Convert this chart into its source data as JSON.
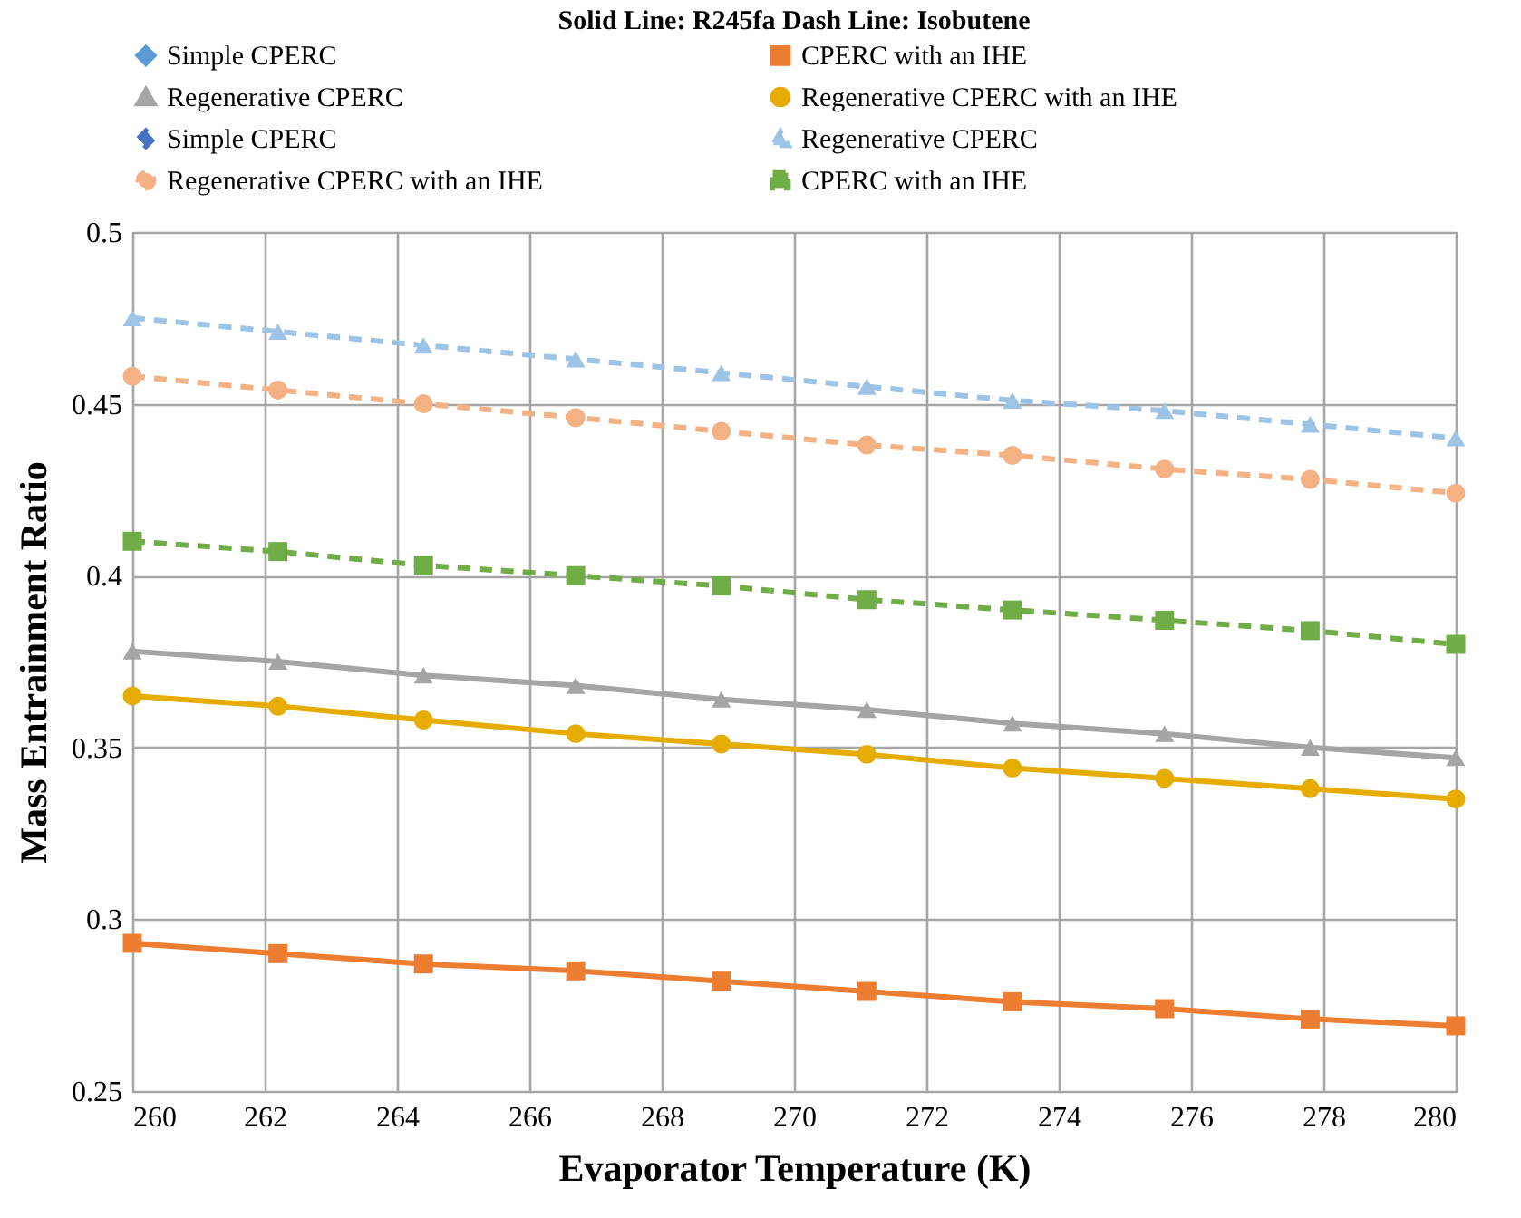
{
  "chart_data": {
    "type": "line",
    "title": "Solid Line: R245fa     Dash Line: Isobutene",
    "xlabel": "Evaporator Temperature (K)",
    "ylabel": "Mass Entrainment Ratio",
    "x": [
      260,
      262.2,
      264.4,
      266.7,
      268.9,
      271.1,
      273.3,
      275.6,
      277.8,
      280
    ],
    "xlim": [
      260,
      280
    ],
    "xticks": [
      260,
      262,
      264,
      266,
      268,
      270,
      272,
      274,
      276,
      278,
      280
    ],
    "ylim": [
      0.25,
      0.5
    ],
    "yticks": [
      0.25,
      0.3,
      0.35,
      0.4,
      0.45,
      0.5
    ],
    "grid": true,
    "legend": "top",
    "series": [
      {
        "name": "Simple CPERC",
        "color": "#5b9bd5",
        "marker": "diamond",
        "line_style": "solid",
        "values": [
          null,
          null,
          null,
          null,
          null,
          null,
          null,
          null,
          null,
          null
        ]
      },
      {
        "name": "CPERC with an IHE",
        "color": "#ed7d31",
        "marker": "square",
        "line_style": "solid",
        "values": [
          0.293,
          0.29,
          0.287,
          0.285,
          0.282,
          0.279,
          0.276,
          0.274,
          0.271,
          0.269
        ]
      },
      {
        "name": "Regenerative CPERC",
        "color": "#a5a5a5",
        "marker": "triangle",
        "line_style": "solid",
        "values": [
          0.378,
          0.375,
          0.371,
          0.368,
          0.364,
          0.361,
          0.357,
          0.354,
          0.35,
          0.347
        ]
      },
      {
        "name": "Regenerative CPERC with an IHE",
        "color": "#e6ac00",
        "marker": "circle",
        "line_style": "solid",
        "values": [
          0.365,
          0.362,
          0.358,
          0.354,
          0.351,
          0.348,
          0.344,
          0.341,
          0.338,
          0.335
        ]
      },
      {
        "name": "Simple CPERC",
        "color": "#4472c4",
        "marker": "diamond",
        "line_style": "dashed",
        "values": [
          null,
          null,
          null,
          null,
          null,
          null,
          null,
          null,
          null,
          null
        ]
      },
      {
        "name": "Regenerative CPERC",
        "color": "#9dc3e6",
        "marker": "triangle",
        "line_style": "dashed",
        "values": [
          0.475,
          0.471,
          0.467,
          0.463,
          0.459,
          0.455,
          0.451,
          0.448,
          0.444,
          0.44
        ]
      },
      {
        "name": "Regenerative CPERC with an IHE",
        "color": "#f4b183",
        "marker": "circle",
        "line_style": "dashed",
        "values": [
          0.458,
          0.454,
          0.45,
          0.446,
          0.442,
          0.438,
          0.435,
          0.431,
          0.428,
          0.424
        ]
      },
      {
        "name": "CPERC with an IHE",
        "color": "#70ad47",
        "marker": "square",
        "line_style": "dashed",
        "values": [
          0.41,
          0.407,
          0.403,
          0.4,
          0.397,
          0.393,
          0.39,
          0.387,
          0.384,
          0.38
        ]
      }
    ]
  }
}
